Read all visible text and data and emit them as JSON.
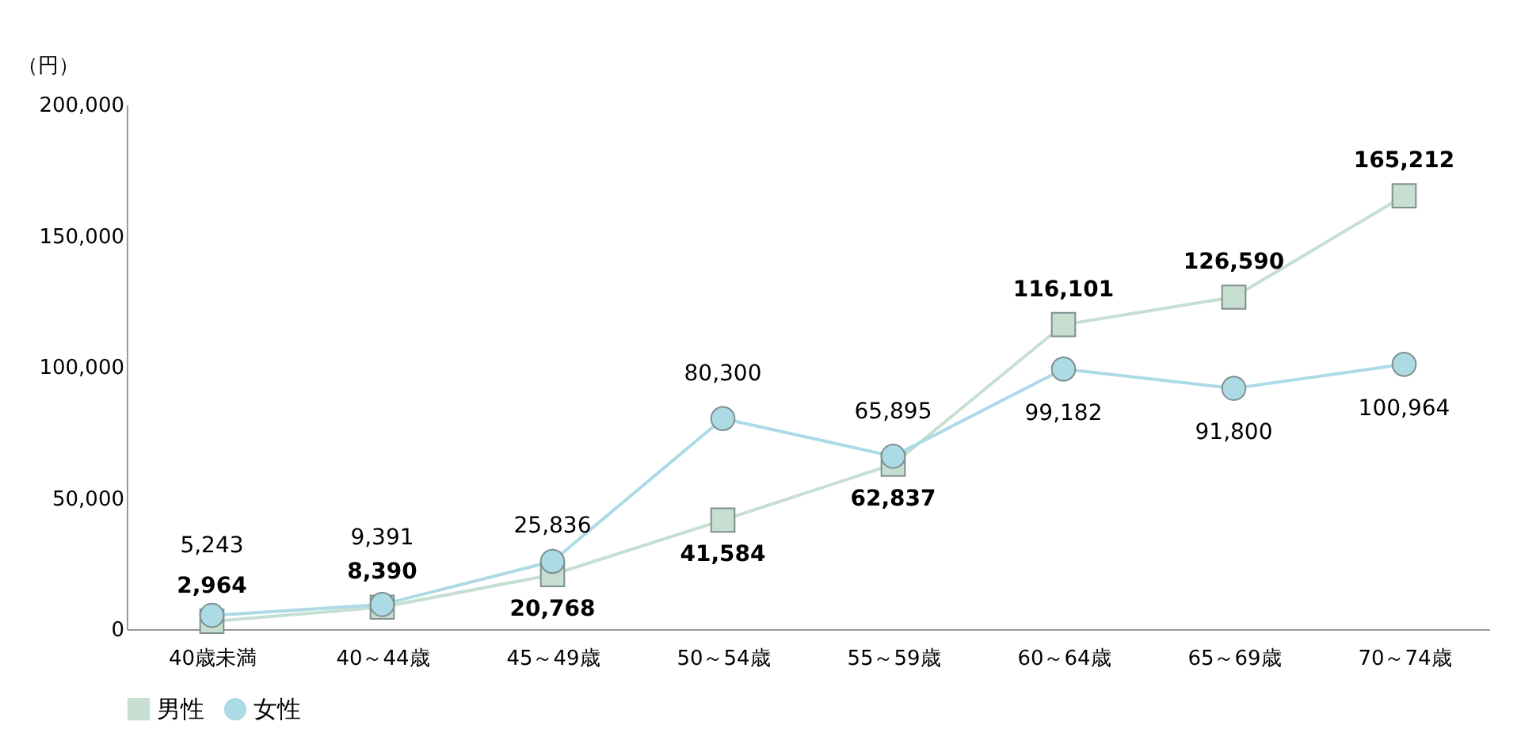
{
  "chart_data": {
    "type": "line",
    "ylabel": "（円）",
    "categories": [
      "40歳未満",
      "40～44歳",
      "45～49歳",
      "50～54歳",
      "55～59歳",
      "60～64歳",
      "65～69歳",
      "70～74歳"
    ],
    "series": [
      {
        "name": "男性",
        "color": "#c6dfd0",
        "marker": "square",
        "values": [
          2964,
          8390,
          20768,
          41584,
          62837,
          116101,
          126590,
          165212
        ],
        "value_labels": [
          "2,964",
          "8,390",
          "20,768",
          "41,584",
          "62,837",
          "116,101",
          "126,590",
          "165,212"
        ]
      },
      {
        "name": "女性",
        "color": "#acdbe6",
        "marker": "circle",
        "values": [
          5243,
          9391,
          25836,
          80300,
          65895,
          99182,
          91800,
          100964
        ],
        "value_labels": [
          "5,243",
          "9,391",
          "25,836",
          "80,300",
          "65,895",
          "99,182",
          "91,800",
          "100,964"
        ]
      }
    ],
    "ylim": [
      0,
      200000
    ],
    "yticks": [
      0,
      {
        "value": 50000,
        "label": "50,000"
      },
      {
        "value": 100000,
        "label": "100,000"
      },
      {
        "value": 150000,
        "label": "150,000"
      },
      {
        "value": 200000,
        "label": "200,000"
      }
    ],
    "grid": false,
    "legend": "bottom",
    "line_style": "solid"
  }
}
